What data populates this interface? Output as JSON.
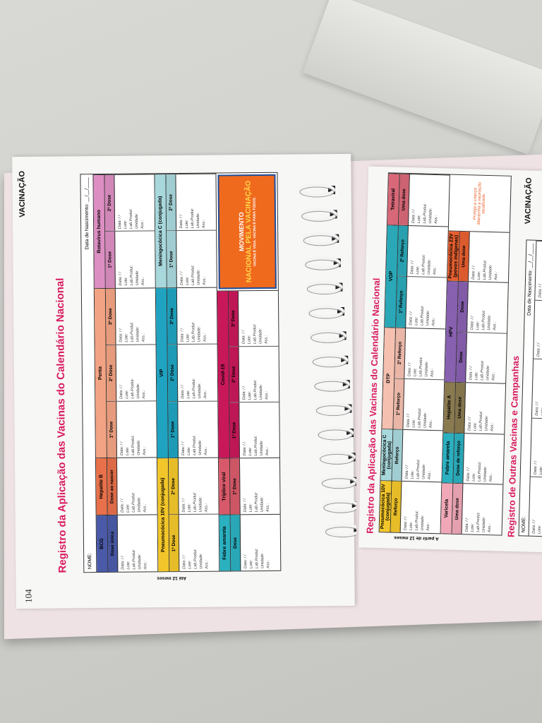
{
  "left_page": {
    "section": "VACINAÇÃO",
    "page_number": "104",
    "title": "Registro da Aplicação das Vacinas do Calendário Nacional",
    "name_label": "NOME:",
    "birth_label": "Data de Nascimento: __/__/____",
    "age_label": "Até 12 meses",
    "logo": {
      "line1": "MOVIMENTO",
      "line2": "NACIONAL PELA VACINAÇÃO",
      "line3": "VACINA É VIDA. VACINA É PARA TODOS."
    },
    "bands": [
      [
        {
          "name": "BCG",
          "color": "#4a5aa8",
          "doses": [
            "Dose única"
          ]
        },
        {
          "name": "Hepatite B",
          "color": "#e8704a",
          "doses": [
            "Dose ao nascer"
          ]
        },
        {
          "name": "Penta",
          "color": "#f2a383",
          "doses": [
            "1ª Dose",
            "2ª Dose",
            "3ª Dose"
          ]
        },
        {
          "name": "Rotavírus humano",
          "color": "#dc8ec2",
          "doses": [
            "1ª Dose",
            "2ª Dose"
          ]
        }
      ],
      [
        {
          "name": "Pneumocócica 10V (conjugada)",
          "color": "#f2c62a",
          "doses": [
            "1ª Dose",
            "2ª Dose"
          ]
        },
        {
          "name": "VIP",
          "color": "#1fa3c0",
          "doses": [
            "1ª Dose",
            "2ª Dose",
            "3ª Dose"
          ]
        },
        {
          "name": "Meningocócica C (conjugada)",
          "color": "#a8d8dc",
          "doses": [
            "1ª Dose",
            "2ª Dose"
          ]
        }
      ],
      [
        {
          "name": "Febre amarela",
          "color": "#2bb0c0",
          "doses": [
            "Dose"
          ]
        },
        {
          "name": "Tríplice viral",
          "color": "#d85a6a",
          "doses": [
            "1ª Dose"
          ]
        },
        {
          "name": "Covid-19",
          "color": "#c8185a",
          "doses": [
            "1ª Dose",
            "2ª Dose",
            "3ª Dose"
          ]
        }
      ]
    ]
  },
  "cell_fields": [
    "Data:   /   /",
    "Lote:",
    "Lab.Produt:",
    "Unidade:",
    "Ass.:"
  ],
  "right_page": {
    "section": "VACINAÇÃO",
    "title": "Registro da Aplicação das Vacinas do Calendário Nacional",
    "age_label": "A partir de 12 meses",
    "note": "Proteja a criança. Mantenha a vacinação atualizada.",
    "bands": [
      [
        {
          "name": "Pneumocócica 10V (conjugada)",
          "color": "#f2c62a",
          "doses": [
            "Reforço"
          ]
        },
        {
          "name": "Meningocócica C (conjugada)",
          "color": "#a8d8dc",
          "doses": [
            "Reforço"
          ]
        },
        {
          "name": "DTP",
          "color": "#f5c0b0",
          "doses": [
            "1º Reforço",
            "2º Reforço"
          ]
        },
        {
          "name": "VOP",
          "color": "#2aa8b8",
          "doses": [
            "1º Reforço",
            "2º Reforço"
          ]
        },
        {
          "name": "Tetraviral",
          "color": "#d86878",
          "doses": [
            "Uma dose"
          ]
        }
      ],
      [
        {
          "name": "Varicela",
          "color": "#f0a8b8",
          "doses": [
            "Uma dose"
          ]
        },
        {
          "name": "Febre amarela",
          "color": "#2bb0c0",
          "doses": [
            "Dose de reforço"
          ]
        },
        {
          "name": "Hepatite A",
          "color": "#8a7a50",
          "doses": [
            "Uma dose"
          ]
        },
        {
          "name": "HPV",
          "color": "#8860b0",
          "doses": [
            "Dose",
            "Dose"
          ]
        },
        {
          "name": "Pneumocócica 23V (povos indígenas)",
          "color": "#e86030",
          "doses": [
            "Uma dose"
          ]
        }
      ]
    ],
    "other_title": "Registro de Outras Vacinas e Campanhas",
    "name_label": "NOME:",
    "birth_label": "Data de Nascimento: __/__/____"
  }
}
